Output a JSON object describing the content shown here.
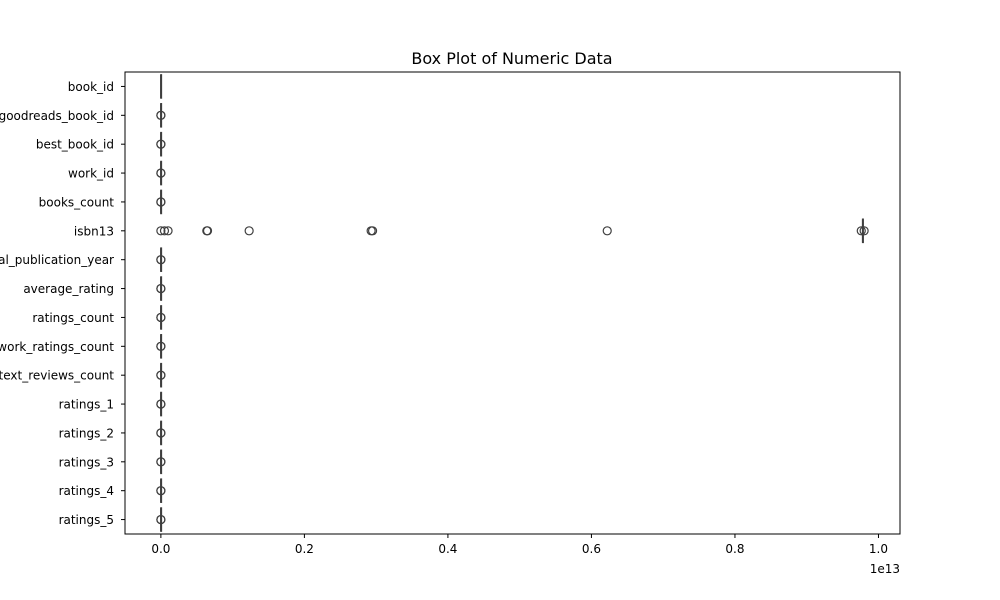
{
  "chart_data": {
    "type": "box",
    "orientation": "horizontal",
    "title": "Box Plot of Numeric Data",
    "xlabel": "",
    "ylabel": "",
    "x_offset_label": "1e13",
    "xlim": [
      -0.05,
      1.03
    ],
    "x_ticks": [
      0.0,
      0.2,
      0.4,
      0.6,
      0.8,
      1.0
    ],
    "x_tick_labels": [
      "0.0",
      "0.2",
      "0.4",
      "0.6",
      "0.8",
      "1.0"
    ],
    "categories": [
      "book_id",
      "goodreads_book_id",
      "best_book_id",
      "work_id",
      "books_count",
      "isbn13",
      "original_publication_year",
      "average_rating",
      "ratings_count",
      "work_ratings_count",
      "work_text_reviews_count",
      "ratings_1",
      "ratings_2",
      "ratings_3",
      "ratings_4",
      "ratings_5"
    ],
    "boxes": [
      {
        "name": "book_id",
        "whisker_low": 0.0,
        "q1": 0.0,
        "median": 0.0,
        "q3": 0.0,
        "whisker_high": 0.0,
        "outliers": []
      },
      {
        "name": "goodreads_book_id",
        "whisker_low": 0.0,
        "q1": 0.0,
        "median": 0.0,
        "q3": 0.0,
        "whisker_high": 0.0,
        "outliers": [
          0.0,
          0.0
        ]
      },
      {
        "name": "best_book_id",
        "whisker_low": 0.0,
        "q1": 0.0,
        "median": 0.0,
        "q3": 0.0,
        "whisker_high": 0.0,
        "outliers": [
          0.0,
          0.0
        ]
      },
      {
        "name": "work_id",
        "whisker_low": 0.0,
        "q1": 0.0,
        "median": 0.0,
        "q3": 0.0,
        "whisker_high": 0.0,
        "outliers": [
          0.0,
          0.0
        ]
      },
      {
        "name": "books_count",
        "whisker_low": 0.0,
        "q1": 0.0,
        "median": 0.0,
        "q3": 0.0,
        "whisker_high": 0.0,
        "outliers": [
          0.0,
          0.0
        ]
      },
      {
        "name": "isbn13",
        "whisker_low": 0.978,
        "q1": 0.978,
        "median": 0.978,
        "q3": 0.978,
        "whisker_high": 0.978,
        "outliers": [
          0.0,
          0.005,
          0.01,
          0.064,
          0.065,
          0.123,
          0.293,
          0.295,
          0.622,
          0.976,
          0.98
        ]
      },
      {
        "name": "original_publication_year",
        "whisker_low": 0.0,
        "q1": 0.0,
        "median": 0.0,
        "q3": 0.0,
        "whisker_high": 0.0,
        "outliers": [
          0.0,
          0.0
        ]
      },
      {
        "name": "average_rating",
        "whisker_low": 0.0,
        "q1": 0.0,
        "median": 0.0,
        "q3": 0.0,
        "whisker_high": 0.0,
        "outliers": [
          0.0,
          0.0
        ]
      },
      {
        "name": "ratings_count",
        "whisker_low": 0.0,
        "q1": 0.0,
        "median": 0.0,
        "q3": 0.0,
        "whisker_high": 0.0,
        "outliers": [
          0.0,
          0.0
        ]
      },
      {
        "name": "work_ratings_count",
        "whisker_low": 0.0,
        "q1": 0.0,
        "median": 0.0,
        "q3": 0.0,
        "whisker_high": 0.0,
        "outliers": [
          0.0,
          0.0
        ]
      },
      {
        "name": "work_text_reviews_count",
        "whisker_low": 0.0,
        "q1": 0.0,
        "median": 0.0,
        "q3": 0.0,
        "whisker_high": 0.0,
        "outliers": [
          0.0,
          0.0
        ]
      },
      {
        "name": "ratings_1",
        "whisker_low": 0.0,
        "q1": 0.0,
        "median": 0.0,
        "q3": 0.0,
        "whisker_high": 0.0,
        "outliers": [
          0.0,
          0.0
        ]
      },
      {
        "name": "ratings_2",
        "whisker_low": 0.0,
        "q1": 0.0,
        "median": 0.0,
        "q3": 0.0,
        "whisker_high": 0.0,
        "outliers": [
          0.0,
          0.0
        ]
      },
      {
        "name": "ratings_3",
        "whisker_low": 0.0,
        "q1": 0.0,
        "median": 0.0,
        "q3": 0.0,
        "whisker_high": 0.0,
        "outliers": [
          0.0,
          0.0
        ]
      },
      {
        "name": "ratings_4",
        "whisker_low": 0.0,
        "q1": 0.0,
        "median": 0.0,
        "q3": 0.0,
        "whisker_high": 0.0,
        "outliers": [
          0.0,
          0.0
        ]
      },
      {
        "name": "ratings_5",
        "whisker_low": 0.0,
        "q1": 0.0,
        "median": 0.0,
        "q3": 0.0,
        "whisker_high": 0.0,
        "outliers": [
          0.0,
          0.0
        ]
      }
    ],
    "grid": false,
    "legend": "none",
    "colors": {
      "box_line": "#3f3f3f",
      "outlier_edge": "#3f3f3f",
      "axes": "#000000",
      "background": "#ffffff"
    }
  }
}
